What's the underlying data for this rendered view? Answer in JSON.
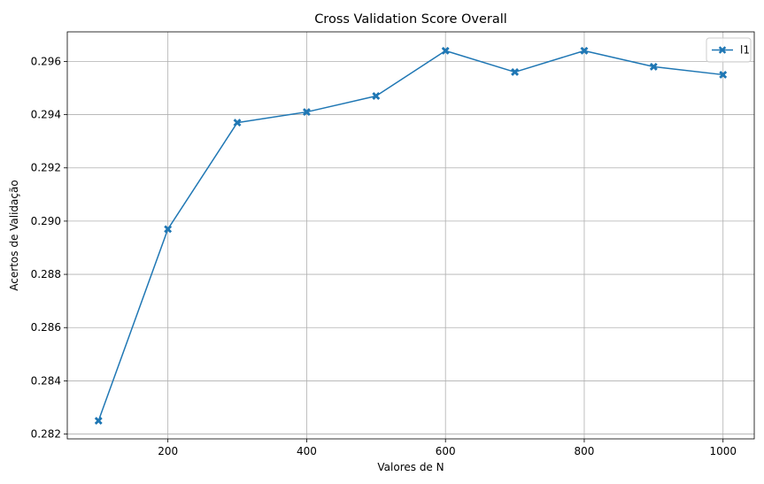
{
  "chart_data": {
    "type": "line",
    "title": "Cross Validation Score Overall",
    "xlabel": "Valores de N",
    "ylabel": "Acertos de Validação",
    "x": [
      100,
      200,
      300,
      400,
      500,
      600,
      700,
      800,
      900,
      1000
    ],
    "series": [
      {
        "name": "l1",
        "values": [
          0.2825,
          0.2897,
          0.2937,
          0.2941,
          0.2947,
          0.2964,
          0.2956,
          0.2964,
          0.2958,
          0.2955
        ],
        "color": "#1f77b4",
        "marker": "x-filled"
      }
    ],
    "xticks": [
      200,
      400,
      600,
      800,
      1000
    ],
    "xtick_labels": [
      "200",
      "400",
      "600",
      "800",
      "1000"
    ],
    "yticks": [
      0.282,
      0.284,
      0.286,
      0.288,
      0.29,
      0.292,
      0.294,
      0.296
    ],
    "ytick_labels": [
      "0.282",
      "0.284",
      "0.286",
      "0.288",
      "0.290",
      "0.292",
      "0.294",
      "0.296"
    ],
    "xlim": [
      55,
      1045
    ],
    "ylim": [
      0.28182,
      0.29711
    ],
    "grid": true,
    "legend_position": "top-right"
  }
}
